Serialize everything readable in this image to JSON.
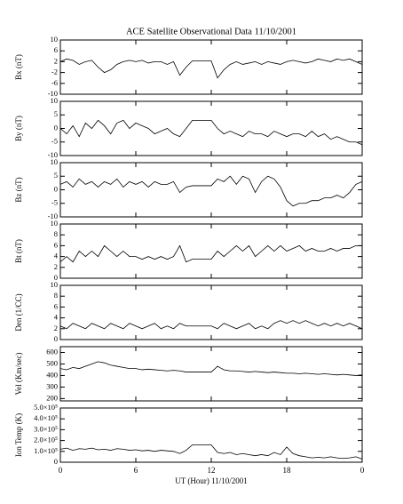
{
  "chart_data": [
    {
      "type": "line",
      "title": "ACE Satellite Observational Data   11/10/2001",
      "ylabel": "Bx (nT)",
      "color": "#000000",
      "ylim": [
        -10,
        10
      ],
      "yticks": [
        -10,
        -6,
        -2,
        2,
        6,
        10
      ],
      "x": [
        0,
        0.5,
        1,
        1.5,
        2,
        2.5,
        3,
        3.5,
        4,
        4.5,
        5,
        5.5,
        6,
        6.5,
        7,
        7.5,
        8,
        8.5,
        9,
        9.5,
        10,
        10.5,
        11,
        11.5,
        12,
        12.5,
        13,
        13.5,
        14,
        14.5,
        15,
        15.5,
        16,
        16.5,
        17,
        17.5,
        18,
        18.5,
        19,
        19.5,
        20,
        20.5,
        21,
        21.5,
        22,
        22.5,
        23,
        23.5,
        24
      ],
      "values": [
        2,
        3,
        2.5,
        1,
        2,
        2.5,
        0,
        -2,
        -1,
        1,
        2,
        2.5,
        2,
        2.5,
        1.5,
        2,
        2,
        1,
        2,
        -3,
        0,
        2.3,
        2.3,
        2.3,
        2.3,
        -4,
        -1,
        1,
        2,
        1,
        1.5,
        2,
        1,
        2,
        1.5,
        1,
        2,
        2.5,
        2,
        1.5,
        2,
        3,
        2.5,
        2,
        3,
        2.5,
        3,
        2,
        1
      ]
    },
    {
      "type": "line",
      "ylabel": "By (nT)",
      "color": "#000000",
      "ylim": [
        -10,
        10
      ],
      "yticks": [
        -10,
        -5,
        0,
        5,
        10
      ],
      "x": [
        0,
        0.5,
        1,
        1.5,
        2,
        2.5,
        3,
        3.5,
        4,
        4.5,
        5,
        5.5,
        6,
        6.5,
        7,
        7.5,
        8,
        8.5,
        9,
        9.5,
        10,
        10.5,
        11,
        11.5,
        12,
        12.5,
        13,
        13.5,
        14,
        14.5,
        15,
        15.5,
        16,
        16.5,
        17,
        17.5,
        18,
        18.5,
        19,
        19.5,
        20,
        20.5,
        21,
        21.5,
        22,
        22.5,
        23,
        23.5,
        24
      ],
      "values": [
        0,
        -2,
        1,
        -3,
        2,
        0,
        3,
        1,
        -2,
        2,
        3,
        0,
        2,
        1,
        0,
        -2,
        -1,
        0,
        -2,
        -3,
        0,
        3,
        3,
        3,
        3,
        0,
        -2,
        -1,
        -2,
        -3,
        -1,
        -2,
        -2,
        -3,
        -1,
        -2,
        -3,
        -2,
        -2,
        -3,
        -1,
        -3,
        -2,
        -4,
        -3,
        -4,
        -5,
        -5,
        -6
      ]
    },
    {
      "type": "line",
      "ylabel": "Bz (nT)",
      "color": "#000000",
      "ylim": [
        -10,
        10
      ],
      "yticks": [
        -10,
        -5,
        0,
        5,
        10
      ],
      "x": [
        0,
        0.5,
        1,
        1.5,
        2,
        2.5,
        3,
        3.5,
        4,
        4.5,
        5,
        5.5,
        6,
        6.5,
        7,
        7.5,
        8,
        8.5,
        9,
        9.5,
        10,
        10.5,
        11,
        11.5,
        12,
        12.5,
        13,
        13.5,
        14,
        14.5,
        15,
        15.5,
        16,
        16.5,
        17,
        17.5,
        18,
        18.5,
        19,
        19.5,
        20,
        20.5,
        21,
        21.5,
        22,
        22.5,
        23,
        23.5,
        24
      ],
      "values": [
        2,
        3,
        1,
        4,
        2,
        3,
        1,
        3,
        2,
        4,
        1,
        3,
        2,
        3,
        1,
        3,
        2,
        2,
        3,
        -1,
        1,
        1.5,
        1.5,
        1.5,
        1.5,
        4,
        3,
        5,
        2,
        5,
        4,
        -1,
        3,
        5,
        4,
        1,
        -4,
        -6,
        -5,
        -5,
        -4,
        -4,
        -3,
        -3,
        -2,
        -3,
        -1,
        2,
        3
      ]
    },
    {
      "type": "line",
      "ylabel": "Bt (nT)",
      "color": "#000000",
      "ylim": [
        0,
        10
      ],
      "yticks": [
        0,
        2,
        4,
        6,
        8,
        10
      ],
      "x": [
        0,
        0.5,
        1,
        1.5,
        2,
        2.5,
        3,
        3.5,
        4,
        4.5,
        5,
        5.5,
        6,
        6.5,
        7,
        7.5,
        8,
        8.5,
        9,
        9.5,
        10,
        10.5,
        11,
        11.5,
        12,
        12.5,
        13,
        13.5,
        14,
        14.5,
        15,
        15.5,
        16,
        16.5,
        17,
        17.5,
        18,
        18.5,
        19,
        19.5,
        20,
        20.5,
        21,
        21.5,
        22,
        22.5,
        23,
        23.5,
        24
      ],
      "values": [
        3,
        4,
        3,
        5,
        4,
        5,
        4,
        6,
        5,
        4,
        5,
        4,
        4,
        3.5,
        4,
        3.5,
        4,
        3.5,
        4,
        6,
        3,
        3.5,
        3.5,
        3.5,
        3.5,
        5,
        4,
        5,
        6,
        5,
        6,
        4,
        5,
        6,
        5,
        6,
        5,
        5.5,
        6,
        5,
        5.5,
        5,
        5,
        5.5,
        5,
        5.5,
        5.5,
        6,
        6
      ]
    },
    {
      "type": "line",
      "ylabel": "Den (1/CC)",
      "color": "#000000",
      "ylim": [
        0,
        10
      ],
      "yticks": [
        0,
        2,
        4,
        6,
        8,
        10
      ],
      "x": [
        0,
        0.5,
        1,
        1.5,
        2,
        2.5,
        3,
        3.5,
        4,
        4.5,
        5,
        5.5,
        6,
        6.5,
        7,
        7.5,
        8,
        8.5,
        9,
        9.5,
        10,
        10.5,
        11,
        11.5,
        12,
        12.5,
        13,
        13.5,
        14,
        14.5,
        15,
        15.5,
        16,
        16.5,
        17,
        17.5,
        18,
        18.5,
        19,
        19.5,
        20,
        20.5,
        21,
        21.5,
        22,
        22.5,
        23,
        23.5,
        24
      ],
      "values": [
        2.5,
        2,
        3,
        2.5,
        2,
        3,
        2.5,
        2,
        3,
        2.5,
        2,
        3,
        2.5,
        2,
        2.5,
        3,
        2,
        2.5,
        2,
        3,
        2.5,
        2.5,
        2.5,
        2.5,
        2.5,
        2,
        3,
        2.5,
        2,
        2.5,
        3,
        2,
        2.5,
        2,
        3,
        3.5,
        3,
        3.5,
        3,
        3.5,
        3,
        2.5,
        3,
        2.5,
        3,
        2.5,
        3,
        2.5,
        2
      ]
    },
    {
      "type": "line",
      "ylabel": "Vel (Km/sec)",
      "color": "#000000",
      "ylim": [
        180,
        650
      ],
      "yticks": [
        200,
        300,
        400,
        500,
        600
      ],
      "x": [
        0,
        0.5,
        1,
        1.5,
        2,
        2.5,
        3,
        3.5,
        4,
        4.5,
        5,
        5.5,
        6,
        6.5,
        7,
        7.5,
        8,
        8.5,
        9,
        9.5,
        10,
        10.5,
        11,
        11.5,
        12,
        12.5,
        13,
        13.5,
        14,
        14.5,
        15,
        15.5,
        16,
        16.5,
        17,
        17.5,
        18,
        18.5,
        19,
        19.5,
        20,
        20.5,
        21,
        21.5,
        22,
        22.5,
        23,
        23.5,
        24
      ],
      "values": [
        460,
        450,
        470,
        460,
        480,
        500,
        520,
        510,
        490,
        480,
        470,
        460,
        460,
        450,
        455,
        450,
        445,
        440,
        445,
        440,
        430,
        430,
        430,
        430,
        430,
        480,
        450,
        440,
        440,
        435,
        430,
        435,
        430,
        425,
        430,
        425,
        420,
        420,
        415,
        420,
        415,
        410,
        415,
        410,
        405,
        410,
        405,
        400,
        405
      ]
    },
    {
      "type": "line",
      "ylabel": "Ion Temp (K)",
      "xlabel": "UT (Hour)  11/10/2001",
      "color": "#000000",
      "xlim": [
        0,
        24
      ],
      "xticks": [
        0,
        6,
        12,
        18,
        {
          "value": 24,
          "label": "0"
        }
      ],
      "ylim": [
        0,
        500000
      ],
      "yticks": [
        0,
        {
          "value": 100000,
          "label": "1.0×10⁵"
        },
        {
          "value": 200000,
          "label": "2.0×10⁵"
        },
        {
          "value": 300000,
          "label": "3.0×10⁵"
        },
        {
          "value": 400000,
          "label": "4.0×10⁵"
        },
        {
          "value": 500000,
          "label": "5.0×10⁵"
        }
      ],
      "x": [
        0,
        0.5,
        1,
        1.5,
        2,
        2.5,
        3,
        3.5,
        4,
        4.5,
        5,
        5.5,
        6,
        6.5,
        7,
        7.5,
        8,
        8.5,
        9,
        9.5,
        10,
        10.5,
        11,
        11.5,
        12,
        12.5,
        13,
        13.5,
        14,
        14.5,
        15,
        15.5,
        16,
        16.5,
        17,
        17.5,
        18,
        18.5,
        19,
        19.5,
        20,
        20.5,
        21,
        21.5,
        22,
        22.5,
        23,
        23.5,
        24
      ],
      "values": [
        120000,
        130000,
        110000,
        125000,
        120000,
        130000,
        115000,
        120000,
        110000,
        125000,
        120000,
        110000,
        115000,
        105000,
        110000,
        100000,
        110000,
        105000,
        100000,
        80000,
        110000,
        160000,
        160000,
        160000,
        160000,
        90000,
        80000,
        90000,
        70000,
        80000,
        70000,
        60000,
        70000,
        60000,
        90000,
        70000,
        140000,
        80000,
        60000,
        50000,
        40000,
        45000,
        40000,
        50000,
        40000,
        35000,
        40000,
        50000,
        30000
      ]
    }
  ]
}
